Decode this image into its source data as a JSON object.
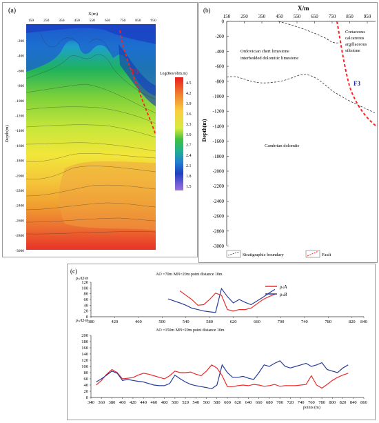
{
  "panel_a": {
    "label": "(a)",
    "x_title": "X(m)",
    "x_ticks": [
      "150",
      "250",
      "350",
      "450",
      "550",
      "650",
      "750",
      "850",
      "950"
    ],
    "y_title": "Depth(m)",
    "y_ticks": [
      "-200",
      "-400",
      "-600",
      "-800",
      "-1000",
      "-1200",
      "-1400",
      "-1600",
      "-1800",
      "-2000",
      "-2200",
      "-2400",
      "-2600",
      "-2800",
      "-3000"
    ],
    "fault_label": "F3",
    "colorbar_title": "Log(Res/ohm.m)",
    "colorbar_ticks": [
      "4.5",
      "4.2",
      "3.9",
      "3.6",
      "3.3",
      "3.0",
      "2.7",
      "2.4",
      "2.1",
      "1.8",
      "1.5"
    ],
    "colors": {
      "fault": "#ff2020",
      "fault_label": "#d82020"
    }
  },
  "panel_b": {
    "label": "(b)",
    "x_title": "X/m",
    "x_ticks": [
      "150",
      "250",
      "350",
      "450",
      "550",
      "650",
      "750",
      "850",
      "950"
    ],
    "y_title": "Depth(m)",
    "y_ticks": [
      "0",
      "-200",
      "-400",
      "-600",
      "-800",
      "-1000",
      "-1200",
      "-1400",
      "-1600",
      "-1800",
      "-2000",
      "-2200",
      "-2400",
      "-2600",
      "-2800",
      "-3000"
    ],
    "unit_upper": [
      "Ordovician chert limestone",
      "interbedded dolomitic limestone"
    ],
    "unit_right": [
      "Cretaceous",
      "calcareous",
      "argillaceous",
      "siltstone"
    ],
    "unit_lower": "Cambrian dolomite",
    "fault_label": "F3",
    "legend": {
      "boundary": "Stratigraphic boundary",
      "fault": "Fault"
    },
    "colors": {
      "fault": "#ff2020",
      "fault_label": "#1a2ca8",
      "boundary": "#333333"
    }
  },
  "panel_c": {
    "label": "(c)",
    "colors": {
      "A": "#ee2a2a",
      "B": "#283c96"
    },
    "chart_data": [
      {
        "type": "line",
        "title": "AO =70m MN=20m point distance 10m",
        "ylabel": "ρₛ/Ω·m",
        "ylim": [
          0,
          120
        ],
        "xlim": [
          380,
          840
        ],
        "x_ticks": [
          "380",
          "420",
          "460",
          "500",
          "540",
          "580",
          "620",
          "660",
          "700",
          "740",
          "780",
          "820",
          "840"
        ],
        "y_ticks": [
          "0",
          "20",
          "40",
          "60",
          "80",
          "100",
          "120"
        ],
        "series": [
          {
            "name": "ρₛA",
            "x": [
              530,
              540,
              550,
              560,
              570,
              580,
              590,
              600,
              610,
              620,
              630,
              640,
              650,
              660,
              670,
              680,
              690
            ],
            "values": [
              90,
              75,
              60,
              40,
              42,
              60,
              82,
              75,
              25,
              20,
              25,
              25,
              30,
              45,
              60,
              70,
              78
            ]
          },
          {
            "name": "ρₛB",
            "x": [
              510,
              520,
              530,
              540,
              550,
              560,
              570,
              580,
              590,
              600,
              610,
              620,
              630,
              640,
              650,
              660,
              670,
              680,
              690
            ],
            "values": [
              62,
              55,
              48,
              40,
              30,
              25,
              20,
              17,
              15,
              98,
              70,
              48,
              60,
              50,
              42,
              55,
              68,
              82,
              95
            ]
          }
        ]
      },
      {
        "type": "line",
        "title": "AO =150m MN=20m point distance 10m",
        "ylabel": "ρₛ/Ω·m",
        "xlabel": "points (m)",
        "ylim": [
          0,
          200
        ],
        "xlim": [
          340,
          860
        ],
        "x_ticks": [
          "340",
          "360",
          "380",
          "400",
          "420",
          "440",
          "460",
          "480",
          "500",
          "520",
          "540",
          "560",
          "580",
          "600",
          "620",
          "640",
          "660",
          "680",
          "700",
          "720",
          "740",
          "760",
          "780",
          "800",
          "820",
          "840",
          "860"
        ],
        "y_ticks": [
          "0",
          "20",
          "40",
          "60",
          "80",
          "100",
          "120",
          "140",
          "160",
          "180",
          "200"
        ],
        "series": [
          {
            "name": "ρₛA",
            "x": [
              350,
              360,
              370,
              380,
              390,
              400,
              410,
              420,
              430,
              440,
              450,
              460,
              470,
              480,
              490,
              500,
              510,
              520,
              530,
              540,
              550,
              560,
              570,
              580,
              590,
              600,
              610,
              620,
              630,
              640,
              650,
              660,
              670,
              680,
              690,
              700,
              710,
              720,
              730,
              740,
              750,
              760,
              770,
              780,
              790,
              800,
              810,
              820,
              830
            ],
            "values": [
              40,
              55,
              75,
              90,
              80,
              60,
              62,
              64,
              72,
              78,
              75,
              70,
              65,
              60,
              70,
              85,
              80,
              80,
              82,
              75,
              70,
              85,
              105,
              95,
              70,
              35,
              35,
              38,
              40,
              38,
              42,
              40,
              36,
              38,
              42,
              36,
              38,
              38,
              38,
              40,
              42,
              70,
              40,
              30,
              42,
              55,
              65,
              72,
              78
            ]
          },
          {
            "name": "ρₛB",
            "x": [
              350,
              360,
              370,
              380,
              390,
              400,
              410,
              420,
              430,
              440,
              450,
              460,
              470,
              480,
              490,
              500,
              510,
              520,
              530,
              540,
              550,
              560,
              570,
              580,
              590,
              600,
              610,
              620,
              630,
              640,
              650,
              660,
              670,
              680,
              690,
              700,
              710,
              720,
              730,
              740,
              750,
              760,
              770,
              780,
              790,
              800,
              810,
              820,
              830
            ],
            "values": [
              50,
              60,
              72,
              85,
              78,
              55,
              58,
              55,
              52,
              50,
              45,
              40,
              38,
              38,
              45,
              72,
              60,
              50,
              42,
              38,
              35,
              32,
              28,
              40,
              105,
              80,
              65,
              65,
              68,
              62,
              58,
              80,
              105,
              100,
              110,
              118,
              100,
              95,
              100,
              105,
              110,
              100,
              105,
              112,
              90,
              85,
              80,
              95,
              105
            ]
          }
        ]
      }
    ]
  }
}
